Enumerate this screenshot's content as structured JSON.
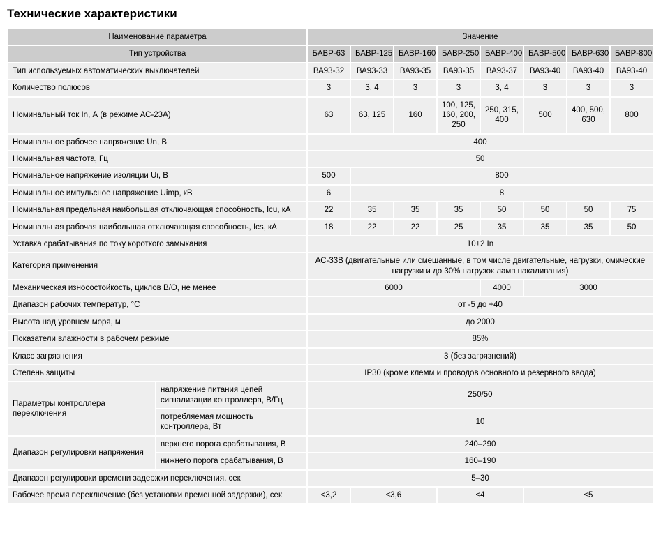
{
  "title": "Технические характеристики",
  "colors": {
    "header_bg": "#cccccc",
    "cell_bg": "#eeeeee",
    "page_bg": "#ffffff",
    "text": "#000000"
  },
  "table": {
    "header_param": "Наименование параметра",
    "header_value": "Значение",
    "device_type_label": "Тип устройства",
    "models": [
      "БАВР-63",
      "БАВР-125",
      "БАВР-160",
      "БАВР-250",
      "БАВР-400",
      "БАВР-500",
      "БАВР-630",
      "БАВР-800"
    ],
    "rows": {
      "breakers_label": "Тип используемых автоматических выключателей",
      "breakers": [
        "ВА93-32",
        "ВА93-33",
        "ВА93-35",
        "ВА93-35",
        "ВА93-37",
        "ВА93-40",
        "ВА93-40",
        "ВА93-40"
      ],
      "poles_label": "Количество полюсов",
      "poles": [
        "3",
        "3, 4",
        "3",
        "3",
        "3, 4",
        "3",
        "3",
        "3"
      ],
      "in_label": "Номинальный ток In, А (в режиме АС-23А)",
      "in": [
        "63",
        "63, 125",
        "160",
        "100, 125, 160, 200, 250",
        "250, 315, 400",
        "500",
        "400, 500, 630",
        "800"
      ],
      "un_label": "Номинальное рабочее напряжение Un, В",
      "un": "400",
      "freq_label": "Номинальная частота, Гц",
      "freq": "50",
      "ui_label": "Номинальное напряжение изоляции Ui, В",
      "ui_a": "500",
      "ui_b": "800",
      "uimp_label": "Номинальное импульсное напряжение Uimp, кВ",
      "uimp_a": "6",
      "uimp_b": "8",
      "icu_label": "Номинальная предельная наибольшая отключающая способность, Icu, кА",
      "icu": [
        "22",
        "35",
        "35",
        "35",
        "50",
        "50",
        "50",
        "75"
      ],
      "ics_label": "Номинальная рабочая наибольшая отключающая способность, Ics, кА",
      "ics": [
        "18",
        "22",
        "22",
        "25",
        "35",
        "35",
        "35",
        "50"
      ],
      "sc_label": "Уставка срабатывания по току короткого замыкания",
      "sc": "10±2 In",
      "cat_label": "Категория применения",
      "cat": "АС-33В (двигательные или смешанные, в том числе двигательные, нагрузки, омические нагрузки и до 30% нагрузок ламп накаливания)",
      "mech_label": "Механическая износостойкость, циклов В/О, не менее",
      "mech_a": "6000",
      "mech_b": "4000",
      "mech_c": "3000",
      "temp_label": "Диапазон рабочих температур, °С",
      "temp": "от -5 до +40",
      "alt_label": "Высота над уровнем моря, м",
      "alt": "до 2000",
      "hum_label": "Показатели влажности в рабочем режиме",
      "hum": "85%",
      "poll_label": "Класс загрязнения",
      "poll": "3 (без загрязнений)",
      "ip_label": "Степень защиты",
      "ip": "IP30 (кроме клемм и проводов основного и резервного ввода)",
      "ctrl_group_label": "Параметры контроллера переключения",
      "ctrl_v_label": "напряжение питания цепей сигнализации контроллера, В/Гц",
      "ctrl_v": "250/50",
      "ctrl_p_label": "потребляемая мощность контроллера, Вт",
      "ctrl_p": "10",
      "vrange_group_label": "Диапазон регулировки напряжения",
      "vrange_hi_label": "верхнего порога срабатывания, В",
      "vrange_hi": "240–290",
      "vrange_lo_label": "нижнего порога срабатывания, В",
      "vrange_lo": "160–190",
      "delay_label": "Диапазон регулировки времени задержки переключения, сек",
      "delay": "5–30",
      "optime_label": "Рабочее время переключение (без установки временной задержки), сек",
      "optime_a": "<3,2",
      "optime_b": "≤3,6",
      "optime_c": "≤4",
      "optime_d": "≤5"
    }
  }
}
